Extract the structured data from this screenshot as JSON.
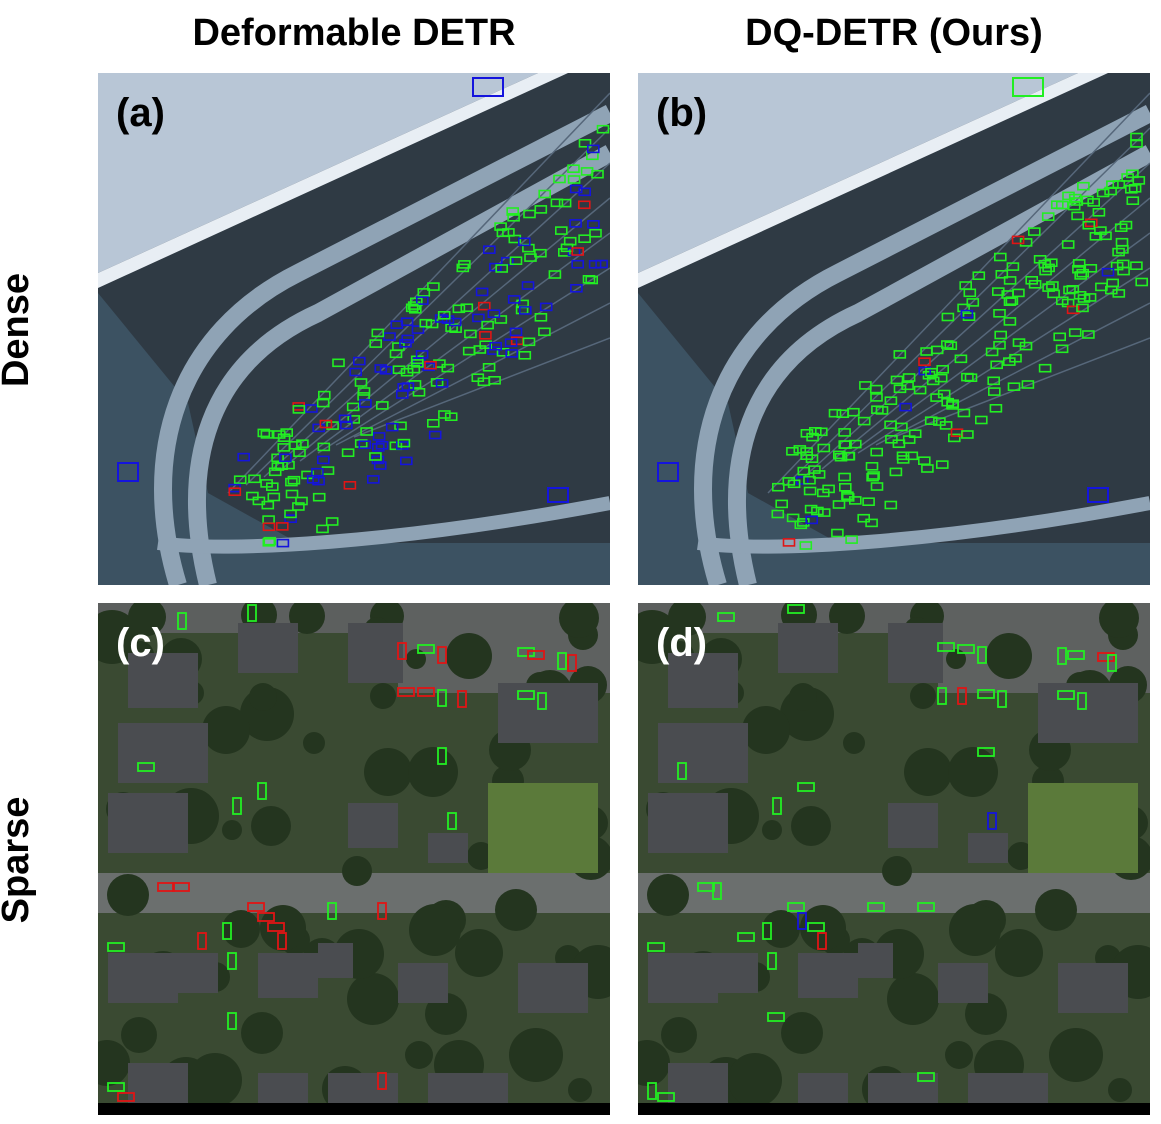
{
  "column_titles": [
    "Deformable DETR",
    "DQ-DETR (Ours)"
  ],
  "row_titles": [
    "Dense",
    "Sparse"
  ],
  "panels": [
    {
      "label": "(a)",
      "label_color": "#000000",
      "scene": "dense",
      "method": "deformable-detr"
    },
    {
      "label": "(b)",
      "label_color": "#000000",
      "scene": "dense",
      "method": "dq-detr"
    },
    {
      "label": "(c)",
      "label_color": "#ffffff",
      "scene": "sparse",
      "method": "deformable-detr"
    },
    {
      "label": "(d)",
      "label_color": "#ffffff",
      "scene": "sparse",
      "method": "dq-detr"
    }
  ],
  "box_colors": {
    "green": "#22ee22",
    "blue": "#1414dd",
    "red": "#e01515"
  }
}
